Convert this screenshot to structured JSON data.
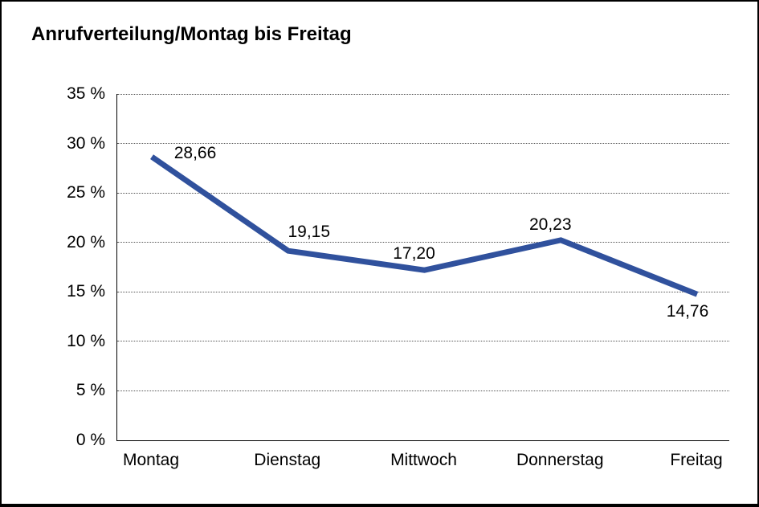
{
  "chart_data": {
    "type": "line",
    "title": "Anrufverteilung/Montag bis Freitag",
    "categories": [
      "Montag",
      "Dienstag",
      "Mittwoch",
      "Donnerstag",
      "Freitag"
    ],
    "values": [
      28.66,
      19.15,
      17.2,
      20.23,
      14.76
    ],
    "data_labels": [
      "28,66",
      "19,15",
      "17,20",
      "20,23",
      "14,76"
    ],
    "ylim": [
      0,
      35
    ],
    "ytick_step": 5,
    "ytick_labels": [
      "0 %",
      "5 %",
      "10 %",
      "15 %",
      "20 %",
      "25 %",
      "30 %",
      "35 %"
    ],
    "xlabel": "",
    "ylabel": "",
    "legend": "none",
    "grid": "horizontal-dotted",
    "line_color": "#30519D",
    "axis_color": "#000000",
    "background_color": "#ffffff"
  }
}
